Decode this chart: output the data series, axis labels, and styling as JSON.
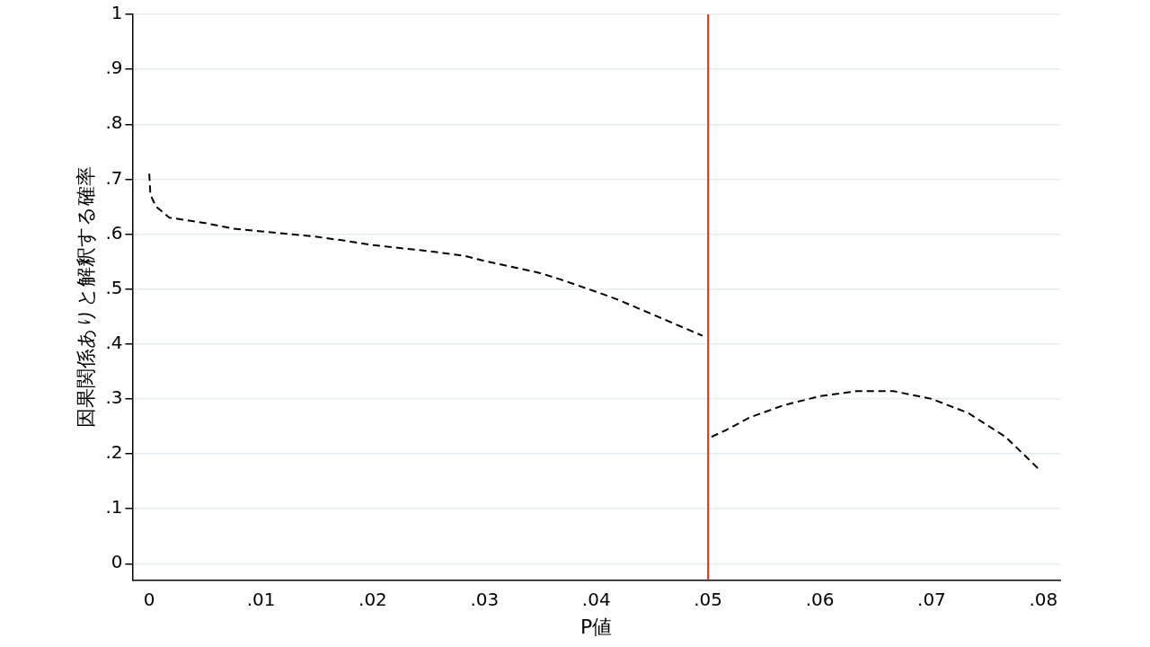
{
  "chart_data": {
    "type": "line",
    "xlabel": "P値",
    "ylabel": "因果関係ありと解釈する確率",
    "xlim": [
      -0.0015,
      0.0815
    ],
    "xticks": [
      {
        "value": 0,
        "label": "0"
      },
      {
        "value": 0.01,
        "label": ".01"
      },
      {
        "value": 0.02,
        "label": ".02"
      },
      {
        "value": 0.03,
        "label": ".03"
      },
      {
        "value": 0.04,
        "label": ".04"
      },
      {
        "value": 0.05,
        "label": ".05"
      },
      {
        "value": 0.06,
        "label": ".06"
      },
      {
        "value": 0.07,
        "label": ".07"
      },
      {
        "value": 0.08,
        "label": ".08"
      }
    ],
    "ylim": [
      -0.03,
      1
    ],
    "yticks": [
      {
        "value": 0,
        "label": "0"
      },
      {
        "value": 0.1,
        "label": ".1"
      },
      {
        "value": 0.2,
        "label": ".2"
      },
      {
        "value": 0.3,
        "label": ".3"
      },
      {
        "value": 0.4,
        "label": ".4"
      },
      {
        "value": 0.5,
        "label": ".5"
      },
      {
        "value": 0.6,
        "label": ".6"
      },
      {
        "value": 0.7,
        "label": ".7"
      },
      {
        "value": 0.8,
        "label": ".8"
      },
      {
        "value": 0.9,
        "label": ".9"
      },
      {
        "value": 1,
        "label": "1"
      }
    ],
    "grid": "y",
    "marker": "none",
    "line_style": "dashed",
    "legend": false,
    "series": [
      {
        "color": "#000000",
        "x": [
          0,
          0.0001,
          0.0006,
          0.0018,
          0.005,
          0.0075,
          0.01,
          0.015,
          0.0175,
          0.02,
          0.025,
          0.0283,
          0.03,
          0.035,
          0.0367,
          0.04,
          0.042,
          0.045,
          0.0495
        ],
        "values": [
          0.71,
          0.672,
          0.65,
          0.63,
          0.62,
          0.61,
          0.605,
          0.595,
          0.588,
          0.58,
          0.569,
          0.56,
          0.551,
          0.529,
          0.518,
          0.495,
          0.48,
          0.454,
          0.415
        ]
      },
      {
        "color": "#000000",
        "x": [
          0.0503,
          0.0516,
          0.0537,
          0.0567,
          0.06,
          0.0633,
          0.0666,
          0.07,
          0.0733,
          0.0766,
          0.0796
        ],
        "values": [
          0.231,
          0.243,
          0.266,
          0.288,
          0.305,
          0.314,
          0.314,
          0.3,
          0.274,
          0.231,
          0.172
        ]
      }
    ],
    "ref_lines": [
      {
        "axis": "x",
        "value": 0.05,
        "color": "#e0301e"
      }
    ]
  }
}
